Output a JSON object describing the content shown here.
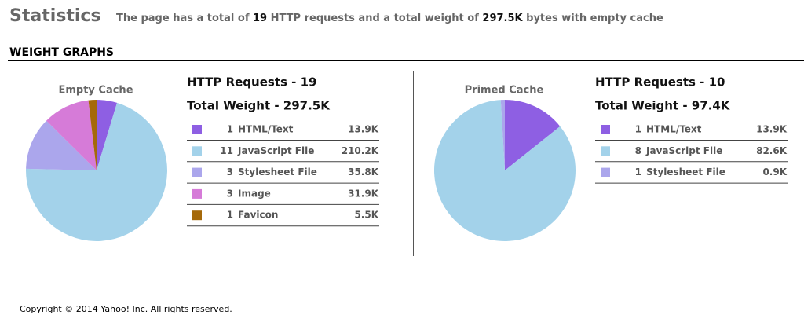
{
  "header": {
    "title": "Statistics",
    "summary": [
      "The page has a total of ",
      "19",
      " HTTP requests and a total weight of ",
      "297.5K",
      " bytes with empty cache"
    ]
  },
  "section_title": "WEIGHT GRAPHS",
  "chart_data": [
    {
      "type": "pie",
      "title": "Empty Cache",
      "requests_label": "HTTP Requests - 19",
      "weight_label": "Total Weight - 297.5K",
      "counts": [
        1,
        11,
        3,
        3,
        1
      ],
      "categories": [
        "HTML/Text",
        "JavaScript File",
        "Stylesheet File",
        "Image",
        "Favicon"
      ],
      "values": [
        13.9,
        210.2,
        35.8,
        31.9,
        5.5
      ],
      "value_labels": [
        "13.9K",
        "210.2K",
        "35.8K",
        "31.9K",
        "5.5K"
      ],
      "colors": [
        "#8e5fe3",
        "#a3d2ea",
        "#aba6ec",
        "#d67bd8",
        "#a5690a"
      ]
    },
    {
      "type": "pie",
      "title": "Primed Cache",
      "requests_label": "HTTP Requests - 10",
      "weight_label": "Total Weight - 97.4K",
      "counts": [
        1,
        8,
        1
      ],
      "categories": [
        "HTML/Text",
        "JavaScript File",
        "Stylesheet File"
      ],
      "values": [
        13.9,
        82.6,
        0.9
      ],
      "value_labels": [
        "13.9K",
        "82.6K",
        "0.9K"
      ],
      "colors": [
        "#8e5fe3",
        "#a3d2ea",
        "#aba6ec"
      ]
    }
  ],
  "footer": "Copyright © 2014 Yahoo! Inc. All rights reserved."
}
